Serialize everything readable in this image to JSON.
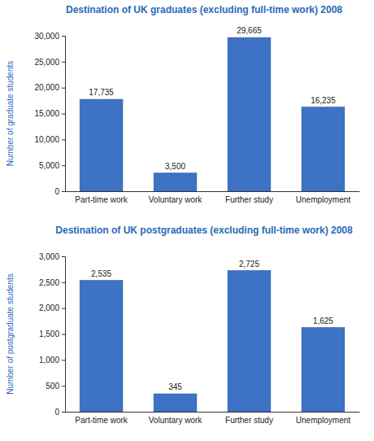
{
  "chart_data": [
    {
      "type": "bar",
      "title": "Destination of UK graduates (excluding full-time work) 2008",
      "y_label": "Number of graduate students",
      "categories": [
        "Part-time work",
        "Voluntary work",
        "Further study",
        "Unemployment"
      ],
      "values": [
        17735,
        3500,
        29665,
        16235
      ],
      "value_labels": [
        "17,735",
        "3,500",
        "29,665",
        "16,235"
      ],
      "data_labels": true,
      "color": "#3d72c4",
      "ylim": [
        0,
        30000
      ],
      "yticks": [
        0,
        {
          "value": 5000,
          "label": "5,000"
        },
        {
          "value": 10000,
          "label": "10,000"
        },
        {
          "value": 15000,
          "label": "15,000"
        },
        {
          "value": 20000,
          "label": "20,000"
        },
        {
          "value": 25000,
          "label": "25,000"
        },
        {
          "value": 30000,
          "label": "30,000"
        }
      ],
      "grid": false
    },
    {
      "type": "bar",
      "title": "Destination of UK postgraduates (excluding full-time work) 2008",
      "y_label": "Number of postgraduate students",
      "categories": [
        "Part-time work",
        "Voluntary work",
        "Further study",
        "Unemployment"
      ],
      "values": [
        2535,
        345,
        2725,
        1625
      ],
      "value_labels": [
        "2,535",
        "345",
        "2,725",
        "1,625"
      ],
      "data_labels": true,
      "color": "#3d72c4",
      "ylim": [
        0,
        3000
      ],
      "yticks": [
        0,
        500,
        {
          "value": 1000,
          "label": "1,000"
        },
        {
          "value": 1500,
          "label": "1,500"
        },
        {
          "value": 2000,
          "label": "2,000"
        },
        {
          "value": 2500,
          "label": "2,500"
        },
        {
          "value": 3000,
          "label": "3,000"
        }
      ],
      "grid": false
    }
  ]
}
